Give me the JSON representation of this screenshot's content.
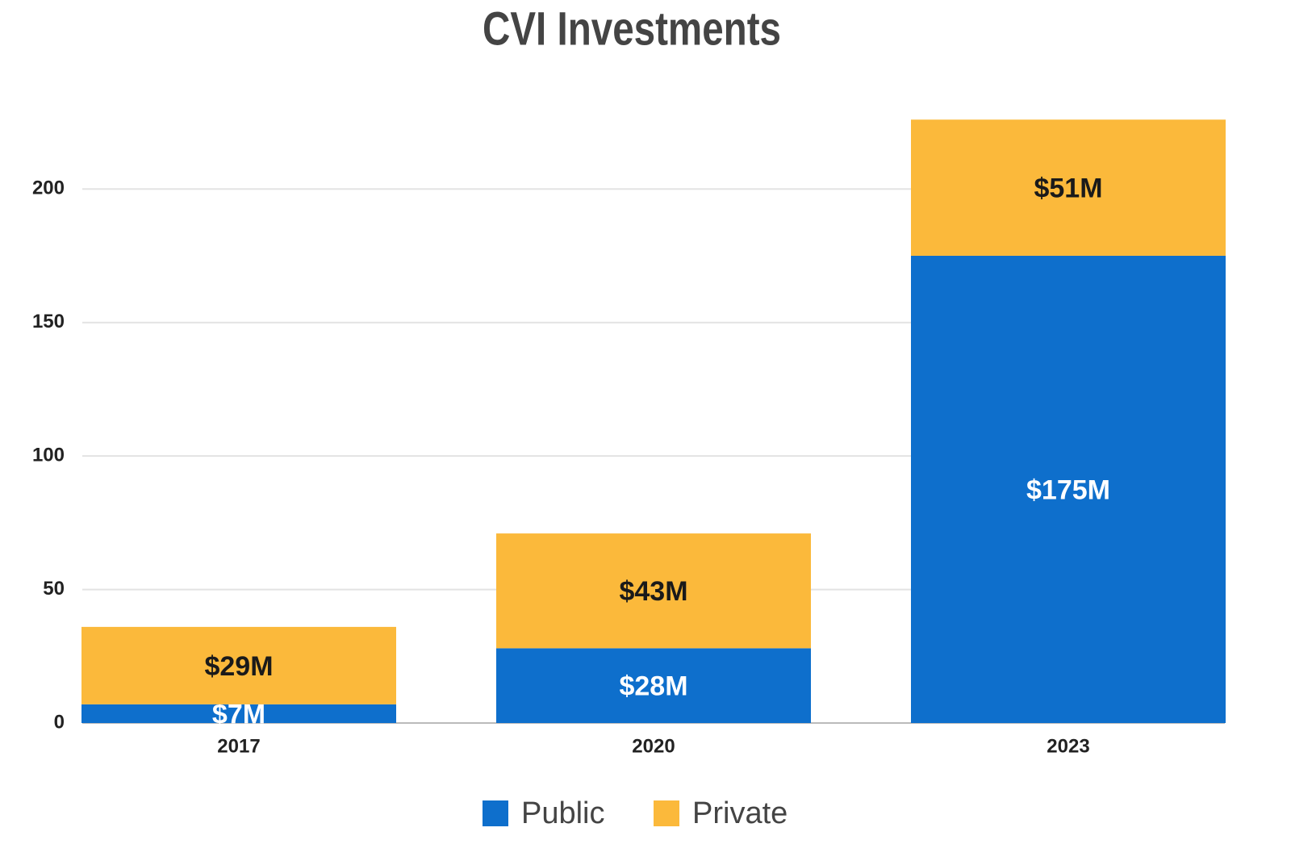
{
  "chart_data": {
    "type": "stacked_bar",
    "title": "CVI Investments",
    "categories": [
      "2017",
      "2020",
      "2023"
    ],
    "series": [
      {
        "name": "Public",
        "color": "#0e6fcc",
        "values": [
          7,
          28,
          175
        ],
        "value_labels": [
          "$7M",
          "$28M",
          "$175M"
        ]
      },
      {
        "name": "Private",
        "color": "#fbb93b",
        "values": [
          29,
          43,
          51
        ],
        "value_labels": [
          "$29M",
          "$43M",
          "$51M"
        ]
      }
    ],
    "ylim": [
      0,
      230
    ],
    "yticks": [
      0,
      50,
      100,
      150,
      200
    ],
    "grid": true,
    "legend": "bottom"
  }
}
